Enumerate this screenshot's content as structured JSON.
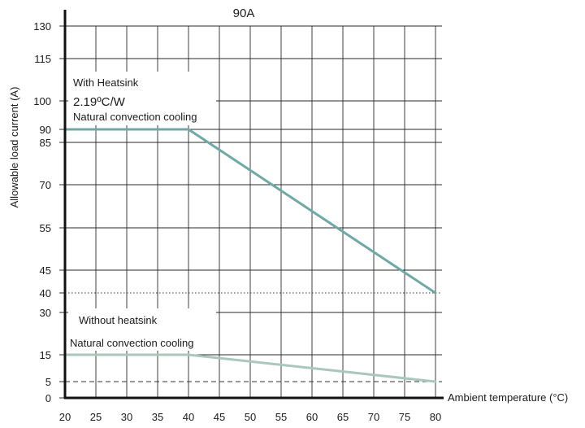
{
  "chart_data": {
    "type": "line",
    "title": "90A",
    "xlabel": "Ambient temperature (°C)",
    "ylabel": "Allowable load current (A)",
    "xlim": [
      20,
      80
    ],
    "ylim": [
      0,
      130
    ],
    "x_ticks": [
      20,
      25,
      30,
      35,
      40,
      45,
      50,
      55,
      60,
      65,
      70,
      75,
      80
    ],
    "y_ticks": [
      0,
      5,
      15,
      30,
      40,
      45,
      55,
      70,
      85,
      90,
      100,
      115,
      130
    ],
    "grid": true,
    "reference_lines": [
      {
        "y": 40,
        "style": "dotted"
      },
      {
        "y": 5,
        "style": "dashed"
      }
    ],
    "series": [
      {
        "x": [
          20,
          40,
          80
        ],
        "values": [
          90,
          90,
          40
        ],
        "color": "#6fa9a6"
      },
      {
        "x": [
          20,
          40,
          80
        ],
        "values": [
          15,
          15,
          5
        ],
        "color": "#a9c8bb"
      }
    ],
    "annotations": [
      {
        "id": "with-heatsink",
        "lines": [
          "With Heatsink",
          "2.19ºC/W",
          "Natural convection cooling"
        ]
      },
      {
        "id": "without-heatsink",
        "lines": [
          "Without heatsink",
          "Natural convection cooling"
        ]
      }
    ]
  }
}
